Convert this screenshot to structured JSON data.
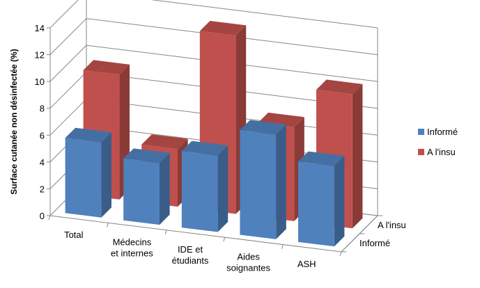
{
  "chart_data": {
    "type": "bar",
    "ylabel": "Surface cutanée non désinfectée (%)",
    "ylim": [
      0,
      14
    ],
    "yticks": [
      "0",
      "2",
      "4",
      "6",
      "8",
      "10",
      "12",
      "14"
    ],
    "grid": true,
    "legend_position": "right",
    "categories": [
      [
        "Total"
      ],
      [
        "Médecins",
        "et internes"
      ],
      [
        "IDE et",
        "étudiants"
      ],
      [
        "Aides",
        "soignantes"
      ],
      [
        "ASH"
      ]
    ],
    "depth_labels": [
      "A l'insu",
      "Informé"
    ],
    "series": [
      {
        "name": "Informé",
        "values": [
          5.6,
          4.6,
          5.7,
          7.8,
          6.0
        ],
        "color": "#4F81BD"
      },
      {
        "name": "A l'insu",
        "values": [
          9.3,
          4.3,
          13.3,
          7.0,
          10.0
        ],
        "color": "#C0504D"
      }
    ]
  }
}
